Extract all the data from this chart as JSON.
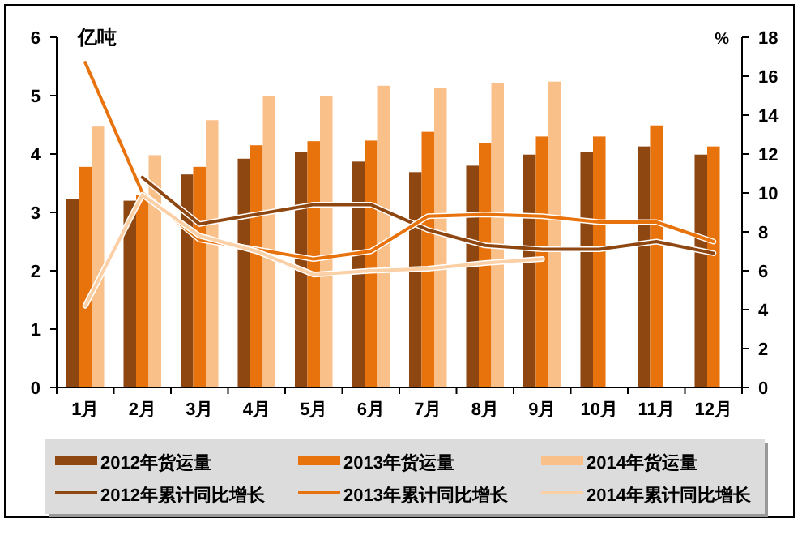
{
  "chart_data": {
    "type": "bar",
    "ylabel": "亿吨",
    "y2label": "%",
    "categories": [
      "1月",
      "2月",
      "3月",
      "4月",
      "5月",
      "6月",
      "7月",
      "8月",
      "9月",
      "10月",
      "11月",
      "12月"
    ],
    "series": [
      {
        "name": "2012年货运量",
        "color": "#8f4712",
        "values": [
          3.23,
          3.2,
          3.65,
          3.92,
          4.03,
          3.87,
          3.69,
          3.8,
          3.99,
          4.04,
          4.13,
          3.99
        ]
      },
      {
        "name": "2013年货运量",
        "color": "#e8720c",
        "values": [
          3.78,
          3.3,
          3.78,
          4.15,
          4.22,
          4.23,
          4.38,
          4.19,
          4.3,
          4.3,
          4.49,
          4.13
        ]
      },
      {
        "name": "2014年货运量",
        "color": "#f9c08a",
        "values": [
          4.47,
          3.98,
          4.58,
          5.0,
          5.0,
          5.17,
          5.13,
          5.21,
          5.24,
          null,
          null,
          null
        ]
      },
      {
        "name": "2012年累计同比增长",
        "type": "line",
        "axis": "y2",
        "color": "#8f4712",
        "values": [
          null,
          10.8,
          8.4,
          8.9,
          9.4,
          9.4,
          8.1,
          7.3,
          7.1,
          7.1,
          7.5,
          6.9
        ]
      },
      {
        "name": "2013年累计同比增长",
        "type": "line",
        "axis": "y2",
        "color": "#e8720c",
        "values": [
          16.7,
          10.0,
          7.6,
          7.1,
          6.6,
          7.0,
          8.8,
          8.9,
          8.8,
          8.5,
          8.5,
          7.5
        ]
      },
      {
        "name": "2014年累计同比增长",
        "type": "line",
        "axis": "y2",
        "color": "#fbd0a6",
        "values": [
          4.2,
          9.9,
          7.8,
          7.0,
          5.8,
          6.0,
          6.1,
          6.4,
          6.6,
          null,
          null,
          null
        ]
      }
    ],
    "ylim": [
      0,
      6
    ],
    "yticks": [
      0,
      1,
      2,
      3,
      4,
      5,
      6
    ],
    "y2lim": [
      0,
      18
    ],
    "y2ticks": [
      0,
      2,
      4,
      6,
      8,
      10,
      12,
      14,
      16,
      18
    ],
    "legend": "bottom",
    "grid": false
  }
}
